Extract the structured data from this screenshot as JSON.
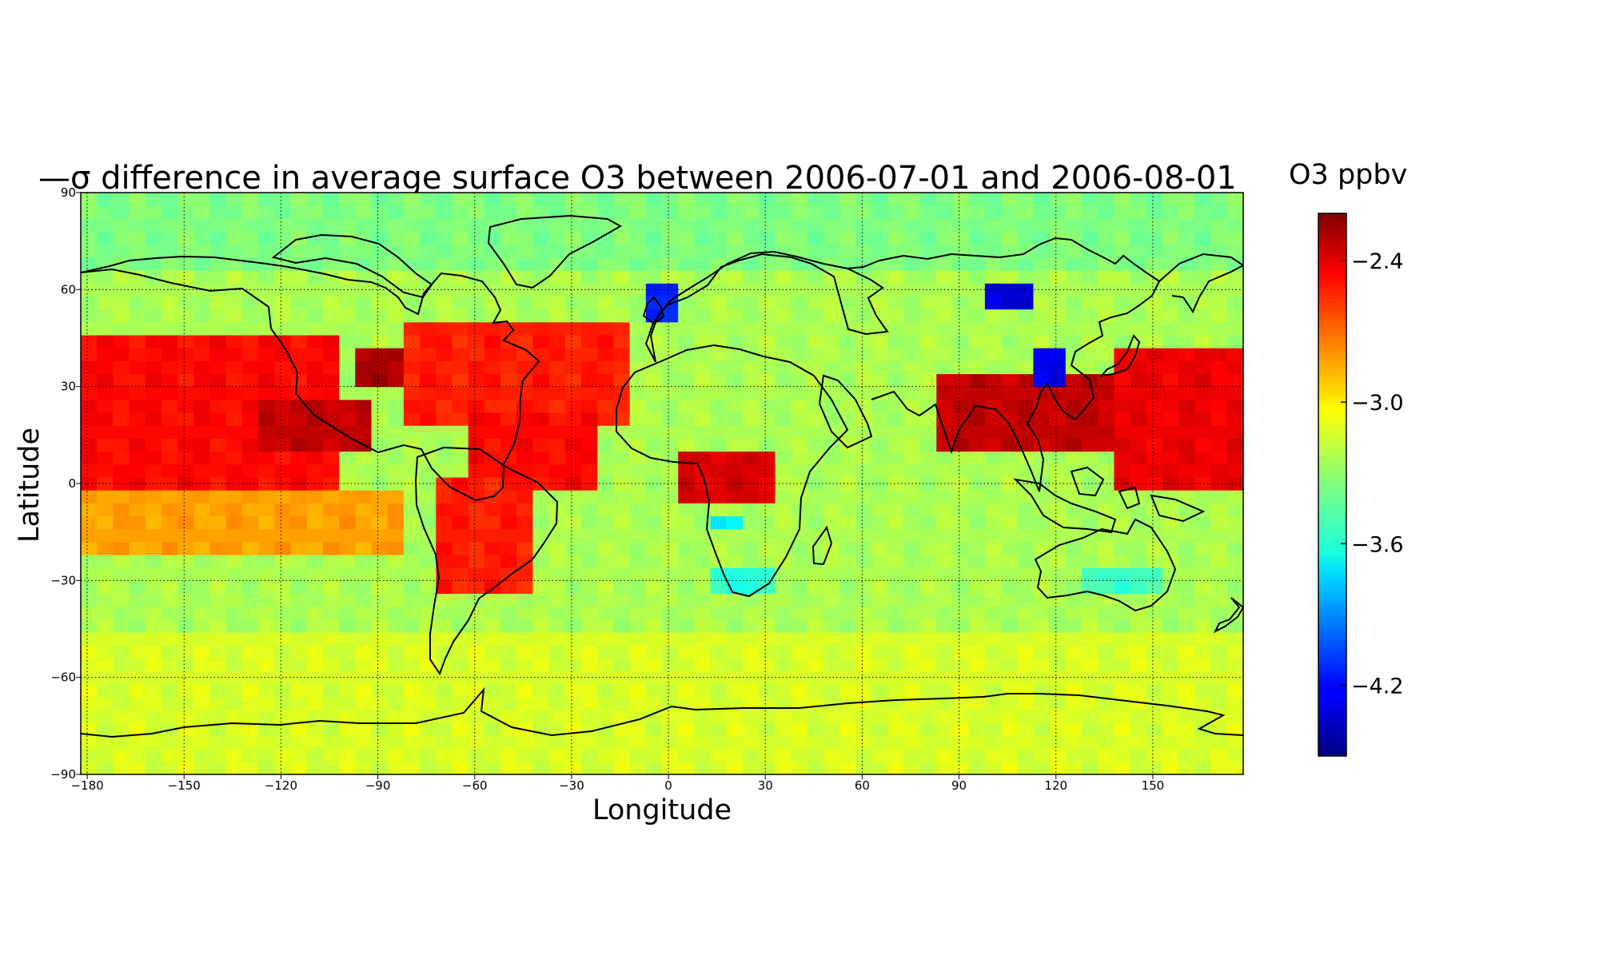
{
  "chart_data": {
    "type": "heatmap",
    "title_prefix": "—σ",
    "title": " difference in average surface O3 between 2006-07-01 and 2006-08-01",
    "colorbar_label": "O3 ppbv",
    "xlabel": "Longitude",
    "ylabel": "Latitude",
    "xlim": [
      -182,
      178
    ],
    "ylim": [
      -90,
      90
    ],
    "xticks": [
      -180,
      -150,
      -120,
      -90,
      -60,
      -30,
      0,
      30,
      60,
      90,
      120,
      150
    ],
    "xtick_labels": [
      "−180",
      "−150",
      "−120",
      "−90",
      "−60",
      "−30",
      "0",
      "30",
      "60",
      "90",
      "120",
      "150"
    ],
    "yticks": [
      90,
      60,
      30,
      0,
      -30,
      -60,
      -90
    ],
    "ytick_labels": [
      "90",
      "60",
      "30",
      "0",
      "−30",
      "−60",
      "−90"
    ],
    "colorbar_range": [
      -4.5,
      -2.2
    ],
    "colorbar_ticks": [
      -2.4,
      -3.0,
      -3.6,
      -4.2
    ],
    "colorbar_tick_labels": [
      "−2.4",
      "−3.0",
      "−3.6",
      "−4.2"
    ],
    "colormap": "jet",
    "grid": "dotted",
    "cell_size_deg": [
      5,
      4
    ],
    "value_regions": [
      {
        "region": "background",
        "value": -3.25
      },
      {
        "region": "Arctic (lat > 65)",
        "value": -3.35
      },
      {
        "region": "Southern Ocean / Antarctica",
        "value": -3.15
      },
      {
        "region": "Tropical Pacific band (0–45N, -182 to -100)",
        "value": -2.5
      },
      {
        "region": "Central America (10–25N, -125 to -90)",
        "value": -2.35
      },
      {
        "region": "Eastern US (30–40N, -95 to -80)",
        "value": -2.3
      },
      {
        "region": "North Atlantic (20–50N, -80 to -10)",
        "value": -2.55
      },
      {
        "region": "Tropical Atlantic (0–20N, -60 to -20)",
        "value": -2.5
      },
      {
        "region": "Equatorial Africa (-5 to 10N, 5 to 35)",
        "value": -2.4
      },
      {
        "region": "East & Southeast Asia (10–35N, 85 to 140)",
        "value": -2.35
      },
      {
        "region": "Western Pacific (0–40N, 140 to 178)",
        "value": -2.45
      },
      {
        "region": "South America (-35 to 0, -70 to -40)",
        "value": -2.55
      },
      {
        "region": "South Pacific subtropics (-20 to 0)",
        "value": -2.85
      },
      {
        "region": "Southern Africa (-35 to -25, 15 to 35)",
        "value": -3.55
      },
      {
        "region": "Southern Australia (-35 to -25, 130 to 155)",
        "value": -3.5
      },
      {
        "region": "UK / North Sea (50–60N, -5 to 5)",
        "value": -4.15
      },
      {
        "region": "Central Siberia (55–60N, 100 to 115)",
        "value": -4.3
      },
      {
        "region": "Northern China (30–40N, 115 to 122)",
        "value": -4.25
      },
      {
        "region": "Angola coast (-15 to -10, 15 to 25)",
        "value": -3.7
      }
    ]
  }
}
